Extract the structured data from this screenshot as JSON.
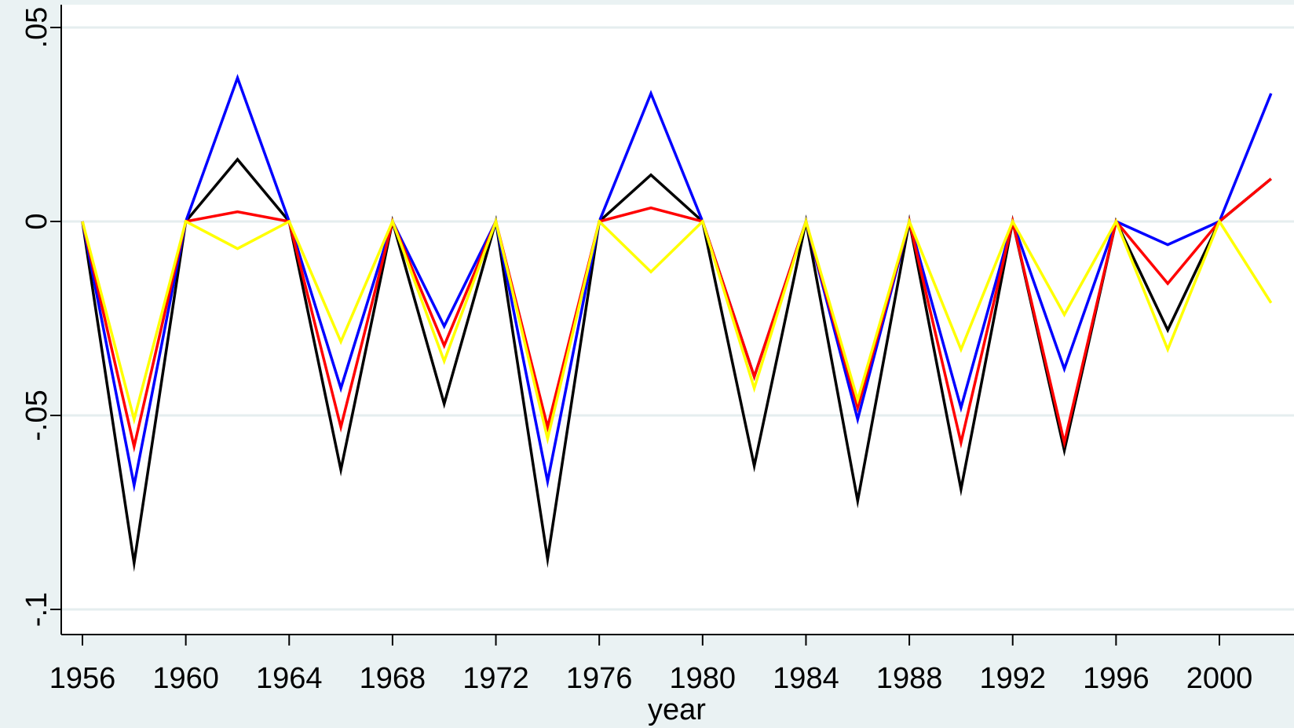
{
  "chart_data": {
    "type": "line",
    "title": "",
    "xlabel": "year",
    "ylabel": "",
    "xlim": [
      1955.5,
      2002.5
    ],
    "ylim": [
      -0.105,
      0.055
    ],
    "xticks": [
      1956,
      1960,
      1964,
      1968,
      1972,
      1976,
      1980,
      1984,
      1988,
      1992,
      1996,
      2000
    ],
    "xtick_labels": [
      "1956",
      "1960",
      "1964",
      "1968",
      "1972",
      "1976",
      "1980",
      "1984",
      "1988",
      "1992",
      "1996",
      "2000"
    ],
    "yticks": [
      0.05,
      0,
      -0.05,
      -0.1
    ],
    "ytick_labels": [
      ".05",
      "0",
      "-.05",
      "-.1"
    ],
    "grid": true,
    "x": [
      1956,
      1958,
      1960,
      1962,
      1964,
      1966,
      1968,
      1970,
      1972,
      1974,
      1976,
      1978,
      1980,
      1982,
      1984,
      1986,
      1988,
      1990,
      1992,
      1994,
      1996,
      1998,
      2000,
      2002
    ],
    "series": [
      {
        "color": "#000000",
        "values": [
          0,
          -0.088,
          0,
          0.016,
          0,
          -0.064,
          0,
          -0.047,
          0,
          -0.087,
          0,
          0.012,
          0,
          -0.063,
          0,
          -0.072,
          0,
          -0.069,
          0,
          -0.059,
          0,
          -0.028,
          0,
          0.011
        ]
      },
      {
        "color": "#0000ff",
        "values": [
          0,
          -0.068,
          0,
          0.037,
          0,
          -0.043,
          0,
          -0.027,
          0,
          -0.067,
          0,
          0.033,
          0,
          -0.04,
          0,
          -0.051,
          0,
          -0.048,
          0,
          -0.038,
          0,
          -0.006,
          0,
          0.033
        ]
      },
      {
        "color": "#ff0000",
        "values": [
          0,
          -0.058,
          0,
          0.0025,
          0,
          -0.053,
          0,
          -0.032,
          0,
          -0.053,
          0,
          0.0035,
          0,
          -0.04,
          0,
          -0.048,
          0,
          -0.057,
          0,
          -0.057,
          0,
          -0.016,
          0,
          0.011
        ]
      },
      {
        "color": "#ffff00",
        "values": [
          0,
          -0.051,
          0,
          -0.007,
          0,
          -0.031,
          0,
          -0.036,
          0,
          -0.056,
          0,
          -0.013,
          0,
          -0.043,
          0,
          -0.046,
          0,
          -0.033,
          0,
          -0.024,
          0,
          -0.033,
          0,
          -0.021
        ]
      }
    ]
  }
}
